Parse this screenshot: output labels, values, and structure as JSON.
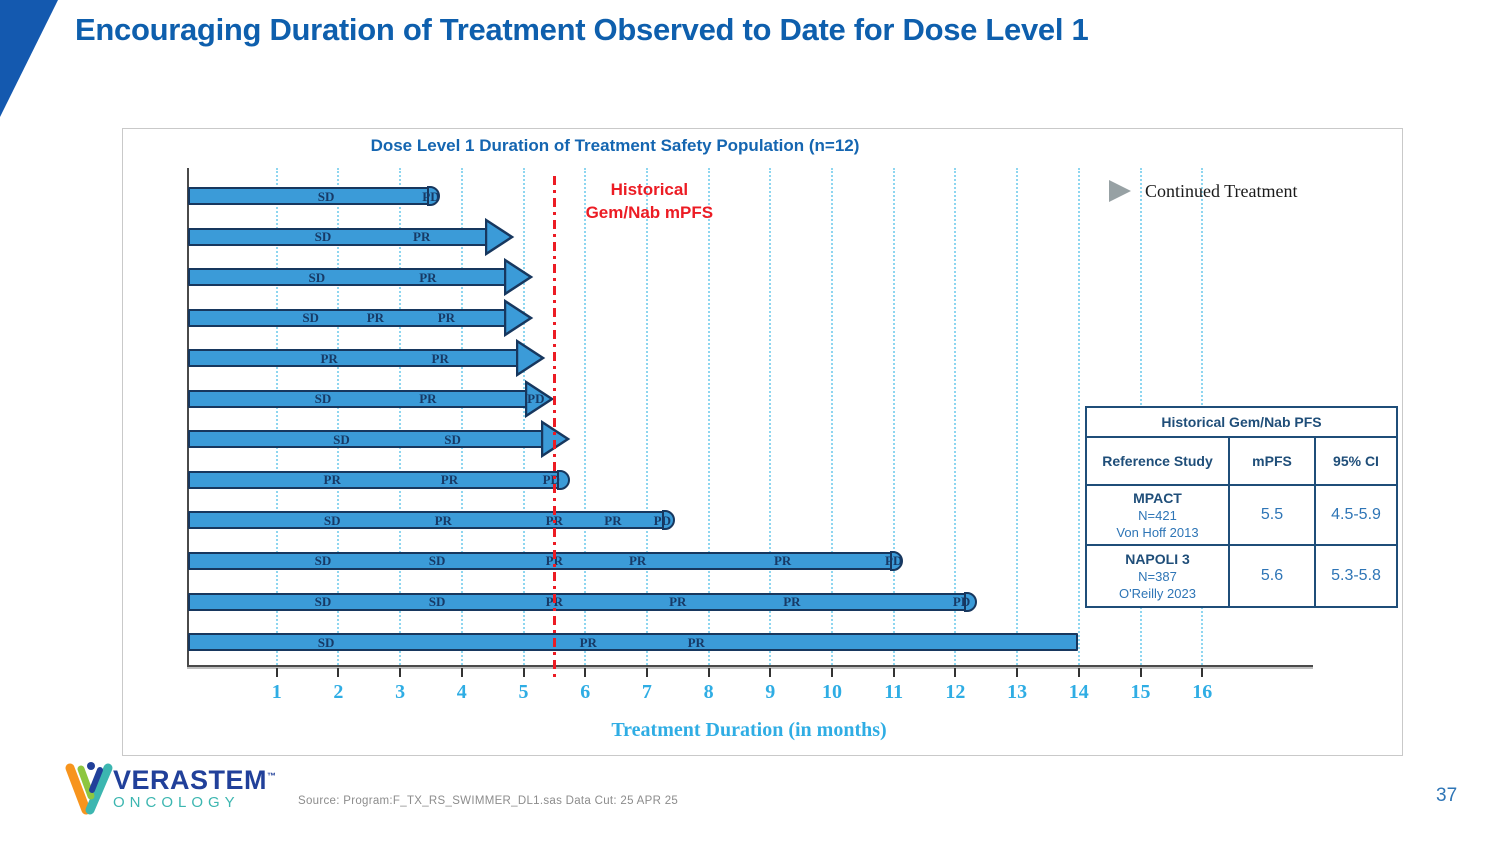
{
  "slide": {
    "title": "Encouraging Duration of Treatment Observed to Date for Dose Level 1",
    "page_number": "37",
    "source_text": "Source: Program:F_TX_RS_SWIMMER_DL1.sas  Data Cut: 25 APR 25",
    "logo": {
      "name": "VERASTEM",
      "tm": "™",
      "sub": "ONCOLOGY"
    }
  },
  "colors": {
    "title_blue": "#0E5FAD",
    "bar_fill": "#3B9BD8",
    "bar_outline": "#17375E",
    "grid_cyan": "#8ED6F0",
    "axis_text_blue": "#2FADE4",
    "reference_red": "#EC1C24",
    "table_dark_blue": "#1F4E79",
    "table_light_blue": "#2E75B6",
    "legend_gray": "#97A1A4"
  },
  "chart_data": {
    "type": "bar",
    "subtype": "swimmer-plot",
    "title": "Dose Level 1 Duration of Treatment Safety Population (n=12)",
    "xlabel": "Treatment Duration (in months)",
    "x_ticks": [
      1,
      2,
      3,
      4,
      5,
      6,
      7,
      8,
      9,
      10,
      11,
      12,
      13,
      14,
      15,
      16
    ],
    "xlim": [
      0,
      17.7
    ],
    "grid": "vertical dotted lines at each month",
    "legend": {
      "label": "Continued Treatment",
      "marker": "gray-arrow"
    },
    "reference_line": {
      "x": 5.5,
      "label_line1": "Historical",
      "label_line2": "Gem/Nab mPFS"
    },
    "patients": [
      {
        "row": 1,
        "end": 3.6,
        "end_style": "nub",
        "labels": [
          {
            "t": "SD",
            "x": 1.8
          },
          {
            "t": "PD",
            "x": 3.5
          }
        ]
      },
      {
        "row": 2,
        "end": 4.8,
        "end_style": "arrow",
        "labels": [
          {
            "t": "SD",
            "x": 1.75
          },
          {
            "t": "PR",
            "x": 3.35
          }
        ]
      },
      {
        "row": 3,
        "end": 5.1,
        "end_style": "arrow",
        "labels": [
          {
            "t": "SD",
            "x": 1.65
          },
          {
            "t": "PR",
            "x": 3.45
          }
        ]
      },
      {
        "row": 4,
        "end": 5.1,
        "end_style": "arrow",
        "labels": [
          {
            "t": "SD",
            "x": 1.55
          },
          {
            "t": "PR",
            "x": 2.6
          },
          {
            "t": "PR",
            "x": 3.75
          }
        ]
      },
      {
        "row": 5,
        "end": 5.3,
        "end_style": "arrow",
        "labels": [
          {
            "t": "PR",
            "x": 1.85
          },
          {
            "t": "PR",
            "x": 3.65
          }
        ]
      },
      {
        "row": 6,
        "end": 5.45,
        "end_style": "arrow",
        "labels": [
          {
            "t": "SD",
            "x": 1.75
          },
          {
            "t": "PR",
            "x": 3.45
          },
          {
            "t": "PD",
            "x": 5.2
          }
        ]
      },
      {
        "row": 7,
        "end": 5.7,
        "end_style": "arrow",
        "labels": [
          {
            "t": "SD",
            "x": 2.05
          },
          {
            "t": "SD",
            "x": 3.85
          }
        ]
      },
      {
        "row": 8,
        "end": 5.7,
        "end_style": "nub",
        "labels": [
          {
            "t": "PR",
            "x": 1.9
          },
          {
            "t": "PR",
            "x": 3.8
          },
          {
            "t": "PD",
            "x": 5.45
          }
        ]
      },
      {
        "row": 9,
        "end": 7.4,
        "end_style": "nub",
        "labels": [
          {
            "t": "SD",
            "x": 1.9
          },
          {
            "t": "PR",
            "x": 3.7
          },
          {
            "t": "PR",
            "x": 5.5
          },
          {
            "t": "PR",
            "x": 6.45
          },
          {
            "t": "PD",
            "x": 7.25
          }
        ]
      },
      {
        "row": 10,
        "end": 11.1,
        "end_style": "nub",
        "labels": [
          {
            "t": "SD",
            "x": 1.75
          },
          {
            "t": "SD",
            "x": 3.6
          },
          {
            "t": "PR",
            "x": 5.5
          },
          {
            "t": "PR",
            "x": 6.85
          },
          {
            "t": "PR",
            "x": 9.2
          },
          {
            "t": "PD",
            "x": 11.0
          }
        ]
      },
      {
        "row": 11,
        "end": 12.3,
        "end_style": "nub",
        "labels": [
          {
            "t": "SD",
            "x": 1.75
          },
          {
            "t": "SD",
            "x": 3.6
          },
          {
            "t": "PR",
            "x": 5.5
          },
          {
            "t": "PR",
            "x": 7.5
          },
          {
            "t": "PR",
            "x": 9.35
          },
          {
            "t": "PD",
            "x": 12.1
          }
        ]
      },
      {
        "row": 12,
        "end": 13.9,
        "end_style": "flat",
        "labels": [
          {
            "t": "SD",
            "x": 1.8
          },
          {
            "t": "PR",
            "x": 6.05
          },
          {
            "t": "PR",
            "x": 7.8
          }
        ]
      }
    ]
  },
  "table": {
    "title": "Historical Gem/Nab PFS",
    "columns": [
      "Reference Study",
      "mPFS",
      "95% CI"
    ],
    "rows": [
      {
        "study_name": "MPACT",
        "study_n": "N=421",
        "study_ref": "Von Hoff 2013",
        "mpfs": "5.5",
        "ci": "4.5-5.9"
      },
      {
        "study_name": "NAPOLI 3",
        "study_n": "N=387",
        "study_ref": "O'Reilly 2023",
        "mpfs": "5.6",
        "ci": "5.3-5.8"
      }
    ]
  }
}
